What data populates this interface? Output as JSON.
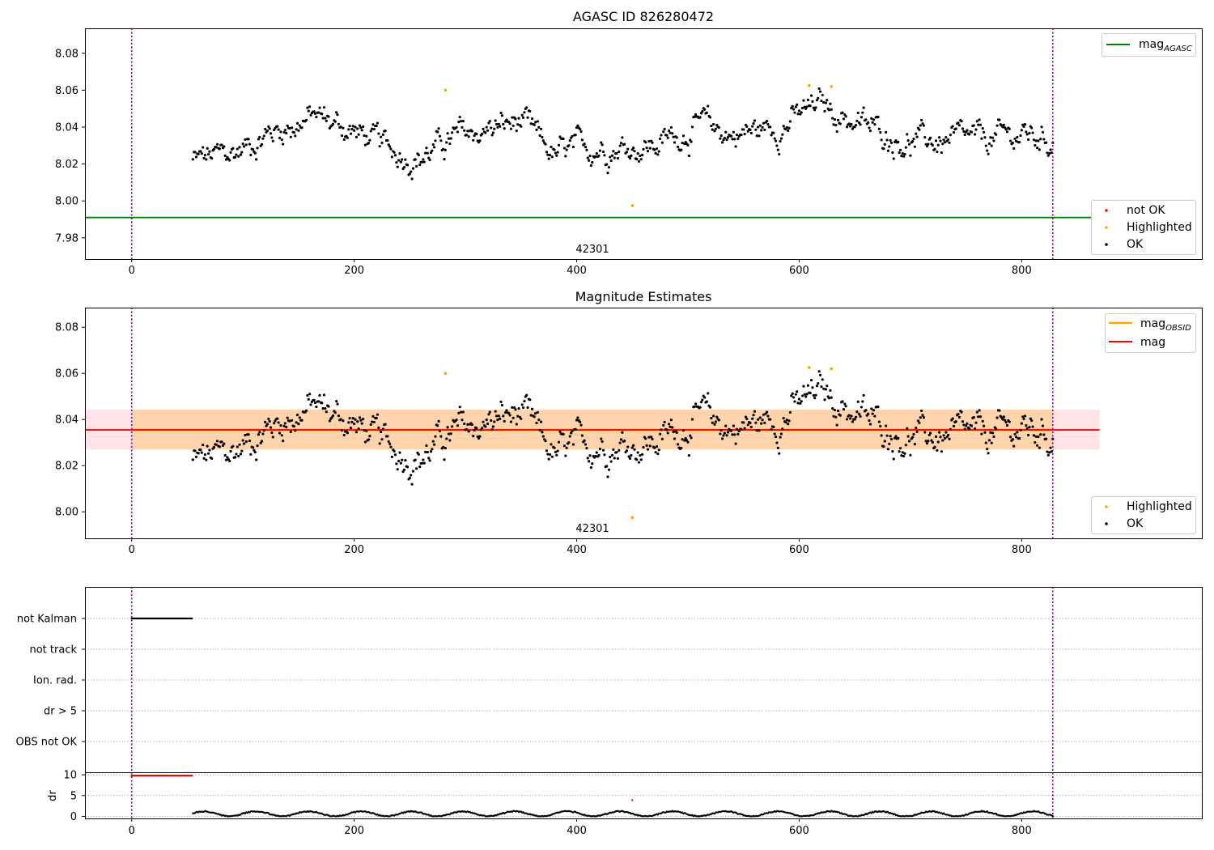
{
  "figure": {
    "background": "#ffffff"
  },
  "chart_data": [
    {
      "type": "scatter",
      "title": "AGASC ID 826280472",
      "xlim": [
        -42,
        962
      ],
      "ylim": [
        7.9685,
        8.0935
      ],
      "xticks": [
        0,
        200,
        400,
        600,
        800
      ],
      "xtick_labels": [
        "0",
        "200",
        "400",
        "600",
        "800"
      ],
      "yticks": [
        7.98,
        8.0,
        8.02,
        8.04,
        8.06,
        8.08
      ],
      "ytick_labels": [
        "7.98",
        "8.00",
        "8.02",
        "8.04",
        "8.06",
        "8.08"
      ],
      "vlines": [
        0,
        828
      ],
      "vline_color": "#800080",
      "hline": {
        "name": "mag_AGASC",
        "value": 7.991,
        "x_range": [
          -42,
          870
        ],
        "color": "#008000"
      },
      "obsid_label": {
        "text": "42301",
        "x": 414,
        "y": 7.9715
      },
      "legend_lines": [
        {
          "text": "mag",
          "subscript": "AGASC",
          "color": "#008000"
        }
      ],
      "legend_points": [
        {
          "text": "not OK",
          "color": "#ff0000"
        },
        {
          "text": "Highlighted",
          "color": "#ffa500"
        },
        {
          "text": "OK",
          "color": "#000000"
        }
      ],
      "highlighted_points": [
        [
          282,
          8.06
        ],
        [
          450,
          7.9975
        ],
        [
          609,
          8.0625
        ],
        [
          629,
          8.062
        ]
      ],
      "not_ok_points": [],
      "ok_series": {
        "x_start": 55,
        "x_end": 828,
        "step": 1,
        "trend_x": [
          55,
          90,
          120,
          165,
          200,
          230,
          260,
          290,
          330,
          350,
          380,
          420,
          470,
          510,
          540,
          580,
          620,
          660,
          700,
          760,
          800,
          828
        ],
        "trend_y": [
          8.022,
          8.025,
          8.036,
          8.046,
          8.038,
          8.028,
          8.024,
          8.034,
          8.04,
          8.042,
          8.024,
          8.03,
          8.03,
          8.041,
          8.036,
          8.04,
          8.052,
          8.04,
          8.032,
          8.032,
          8.036,
          8.033
        ],
        "spread": 0.012,
        "color": "#000000"
      }
    },
    {
      "type": "scatter",
      "title": "Magnitude Estimates",
      "xlim": [
        -42,
        962
      ],
      "ylim": [
        7.9885,
        8.0885
      ],
      "xticks": [
        0,
        200,
        400,
        600,
        800
      ],
      "xtick_labels": [
        "0",
        "200",
        "400",
        "600",
        "800"
      ],
      "yticks": [
        8.0,
        8.02,
        8.04,
        8.06,
        8.08
      ],
      "ytick_labels": [
        "8.00",
        "8.02",
        "8.04",
        "8.06",
        "8.08"
      ],
      "vlines": [
        0,
        828
      ],
      "vline_color": "#800080",
      "band": {
        "y0": 8.027,
        "y1": 8.0443,
        "x_range": [
          -42,
          870
        ],
        "color": "#ffc0c8"
      },
      "obsid_band": {
        "y0": 8.027,
        "y1": 8.0443,
        "x_range": [
          0,
          828
        ],
        "color": "#ffa500"
      },
      "mag_line": {
        "name": "mag",
        "value": 8.0355,
        "x_range": [
          -42,
          870
        ],
        "color": "#ff0000"
      },
      "obsid_line": {
        "name": "mag_OBSID",
        "value": 8.0355,
        "x_range": [
          0,
          828
        ],
        "color": "#ffa500"
      },
      "obsid_label": {
        "text": "42301",
        "x": 414,
        "y": 7.9915
      },
      "legend_lines": [
        {
          "text": "mag",
          "subscript": "OBSID",
          "color": "#ffa500"
        },
        {
          "text": "mag",
          "subscript": "",
          "color": "#ff0000"
        }
      ],
      "legend_points": [
        {
          "text": "Highlighted",
          "color": "#ffa500"
        },
        {
          "text": "OK",
          "color": "#000000"
        }
      ],
      "highlighted_points": [
        [
          282,
          8.06
        ],
        [
          450,
          7.9975
        ],
        [
          609,
          8.0625
        ],
        [
          629,
          8.062
        ]
      ]
    },
    {
      "type": "scatter",
      "title": "",
      "xlim": [
        -42,
        962
      ],
      "categories": [
        "not Kalman",
        "not track",
        "Ion. rad.",
        "dr > 5",
        "OBS not OK"
      ],
      "flag_points": {
        "category": "not Kalman",
        "x_start": 0,
        "x_end": 54,
        "color": "#000000"
      },
      "dr": {
        "ylabel": "dr",
        "ylim": [
          -0.5,
          10.6
        ],
        "yticks": [
          0,
          5,
          10
        ],
        "ytick_labels": [
          "0",
          "5",
          "10"
        ],
        "xticks": [
          0,
          200,
          400,
          600,
          800
        ],
        "xtick_labels": [
          "0",
          "200",
          "400",
          "600",
          "800"
        ],
        "red_points": {
          "x_start": 0,
          "x_end": 54,
          "y": 9.8,
          "color": "#ff0000"
        },
        "red_outlier": [
          450,
          3.9
        ],
        "ok_series": {
          "x_start": 55,
          "x_end": 828,
          "base": 0.6,
          "amplitude": 0.6,
          "color": "#000000"
        }
      },
      "vlines": [
        0,
        828
      ],
      "vline_color": "#800080"
    }
  ]
}
